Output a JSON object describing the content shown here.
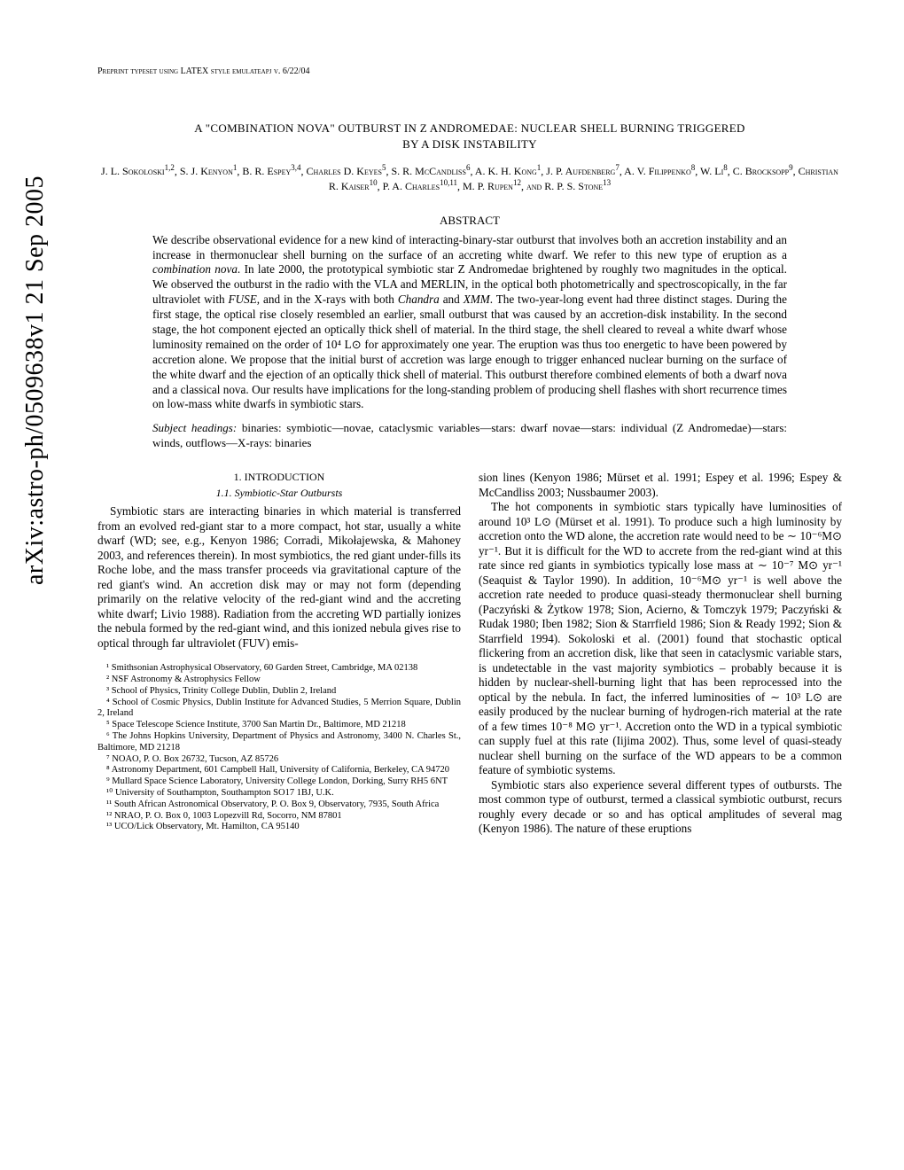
{
  "arxiv": "arXiv:astro-ph/0509638v1  21 Sep 2005",
  "preprint": "Preprint typeset using LATEX style emulateapj v. 6/22/04",
  "title_line1": "A \"COMBINATION NOVA\" OUTBURST IN Z ANDROMEDAE: NUCLEAR SHELL BURNING TRIGGERED",
  "title_line2": "BY A DISK INSTABILITY",
  "authors_html": "J. L. Sokoloski<sup>1,2</sup>, S. J. Kenyon<sup>1</sup>, B. R. Espey<sup>3,4</sup>, Charles D. Keyes<sup>5</sup>, S. R. McCandliss<sup>6</sup>, A. K. H. Kong<sup>1</sup>, J. P. Aufdenberg<sup>7</sup>, A. V. Filippenko<sup>8</sup>, W. Li<sup>8</sup>, C. Brocksopp<sup>9</sup>, Christian R. Kaiser<sup>10</sup>, P. A. Charles<sup>10,11</sup>, M. P. Rupen<sup>12</sup>, and R. P. S. Stone<sup>13</sup>",
  "abstract_heading": "ABSTRACT",
  "abstract": "We describe observational evidence for a new kind of interacting-binary-star outburst that involves both an accretion instability and an increase in thermonuclear shell burning on the surface of an accreting white dwarf. We refer to this new type of eruption as a combination nova. In late 2000, the prototypical symbiotic star Z Andromedae brightened by roughly two magnitudes in the optical. We observed the outburst in the radio with the VLA and MERLIN, in the optical both photometrically and spectroscopically, in the far ultraviolet with FUSE, and in the X-rays with both Chandra and XMM. The two-year-long event had three distinct stages. During the first stage, the optical rise closely resembled an earlier, small outburst that was caused by an accretion-disk instability. In the second stage, the hot component ejected an optically thick shell of material. In the third stage, the shell cleared to reveal a white dwarf whose luminosity remained on the order of 10⁴ L⊙ for approximately one year. The eruption was thus too energetic to have been powered by accretion alone. We propose that the initial burst of accretion was large enough to trigger enhanced nuclear burning on the surface of the white dwarf and the ejection of an optically thick shell of material. This outburst therefore combined elements of both a dwarf nova and a classical nova. Our results have implications for the long-standing problem of producing shell flashes with short recurrence times on low-mass white dwarfs in symbiotic stars.",
  "subject_label": "Subject headings:",
  "subject_body": " binaries: symbiotic—novae, cataclysmic variables—stars: dwarf novae—stars: individual (Z Andromedae)—stars: winds, outflows—X-rays: binaries",
  "section1": "1.  INTRODUCTION",
  "subsection11": "1.1.  Symbiotic-Star Outbursts",
  "col1_para1": "Symbiotic stars are interacting binaries in which material is transferred from an evolved red-giant star to a more compact, hot star, usually a white dwarf (WD; see, e.g., Kenyon 1986; Corradi, Mikołajewska, & Mahoney 2003, and references therein). In most symbiotics, the red giant under-fills its Roche lobe, and the mass transfer proceeds via gravitational capture of the red giant's wind. An accretion disk may or may not form (depending primarily on the relative velocity of the red-giant wind and the accreting white dwarf; Livio 1988). Radiation from the accreting WD partially ionizes the nebula formed by the red-giant wind, and this ionized nebula gives rise to optical through far ultraviolet (FUV) emis-",
  "col2_para1": "sion lines (Kenyon 1986; Mürset et al. 1991; Espey et al. 1996; Espey & McCandliss 2003; Nussbaumer 2003).",
  "col2_para2": "The hot components in symbiotic stars typically have luminosities of around 10³ L⊙ (Mürset et al. 1991). To produce such a high luminosity by accretion onto the WD alone, the accretion rate would need to be ∼ 10⁻⁶M⊙ yr⁻¹. But it is difficult for the WD to accrete from the red-giant wind at this rate since red giants in symbiotics typically lose mass at ∼ 10⁻⁷ M⊙ yr⁻¹ (Seaquist & Taylor 1990). In addition, 10⁻⁶M⊙ yr⁻¹ is well above the accretion rate needed to produce quasi-steady thermonuclear shell burning (Paczyński & Żytkow 1978; Sion, Acierno, & Tomczyk 1979; Paczyński & Rudak 1980; Iben 1982; Sion & Starrfield 1986; Sion & Ready 1992; Sion & Starrfield 1994). Sokoloski et al. (2001) found that stochastic optical flickering from an accretion disk, like that seen in cataclysmic variable stars, is undetectable in the vast majority symbiotics – probably because it is hidden by nuclear-shell-burning light that has been reprocessed into the optical by the nebula. In fact, the inferred luminosities of ∼ 10³ L⊙ are easily produced by the nuclear burning of hydrogen-rich material at the rate of a few times 10⁻⁸ M⊙ yr⁻¹. Accretion onto the WD in a typical symbiotic can supply fuel at this rate (Iijima 2002). Thus, some level of quasi-steady nuclear shell burning on the surface of the WD appears to be a common feature of symbiotic systems.",
  "col2_para3": "Symbiotic stars also experience several different types of outbursts. The most common type of outburst, termed a classical symbiotic outburst, recurs roughly every decade or so and has optical amplitudes of several mag (Kenyon 1986). The nature of these eruptions",
  "footnotes": [
    "¹ Smithsonian Astrophysical Observatory, 60 Garden Street, Cambridge, MA 02138",
    "² NSF Astronomy & Astrophysics Fellow",
    "³ School of Physics, Trinity College Dublin, Dublin 2, Ireland",
    "⁴ School of Cosmic Physics, Dublin Institute for Advanced Studies, 5 Merrion Square, Dublin 2, Ireland",
    "⁵ Space Telescope Science Institute, 3700 San Martin Dr., Baltimore, MD 21218",
    "⁶ The Johns Hopkins University, Department of Physics and Astronomy, 3400 N. Charles St., Baltimore, MD 21218",
    "⁷ NOAO, P. O. Box 26732, Tucson, AZ 85726",
    "⁸ Astronomy Department, 601 Campbell Hall, University of California, Berkeley, CA 94720",
    "⁹ Mullard Space Science Laboratory, University College London, Dorking, Surry RH5 6NT",
    "¹⁰ University of Southampton, Southampton SO17 1BJ, U.K.",
    "¹¹ South African Astronomical Observatory, P. O. Box 9, Observatory, 7935, South Africa",
    "¹² NRAO, P. O. Box 0, 1003 Lopezvill Rd, Socorro, NM 87801",
    "¹³ UCO/Lick Observatory, Mt. Hamilton, CA 95140"
  ]
}
